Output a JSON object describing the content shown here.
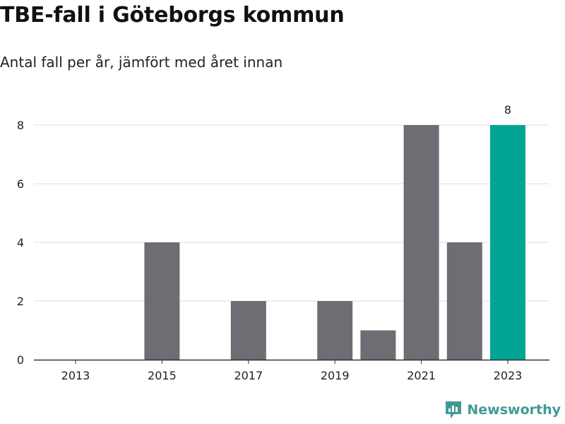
{
  "title": "TBE-fall i Göteborgs kommun",
  "subtitle": "Antal fall per år, jämfört med året innan",
  "brand": {
    "name": "Newsworthy",
    "logo_icon": "newsworthy-logo-icon",
    "color": "#3f9a93"
  },
  "chart_data": {
    "type": "bar",
    "title": "TBE-fall i Göteborgs kommun",
    "subtitle": "Antal fall per år, jämfört med året innan",
    "categories": [
      "2013",
      "2014",
      "2015",
      "2016",
      "2017",
      "2018",
      "2019",
      "2020",
      "2021",
      "2022",
      "2023"
    ],
    "x_tick_labels": [
      "2013",
      "2015",
      "2017",
      "2019",
      "2021",
      "2023"
    ],
    "values": [
      0,
      0,
      4,
      0,
      2,
      0,
      2,
      1,
      8,
      4,
      8
    ],
    "ylim": [
      0,
      8
    ],
    "y_ticks": [
      0,
      2,
      4,
      6,
      8
    ],
    "grid": true,
    "bar_color": "#6e6d74",
    "highlight_color": "#00a595",
    "highlight_category": "2023",
    "data_labels": [
      {
        "category": "2023",
        "value": 8
      }
    ]
  }
}
